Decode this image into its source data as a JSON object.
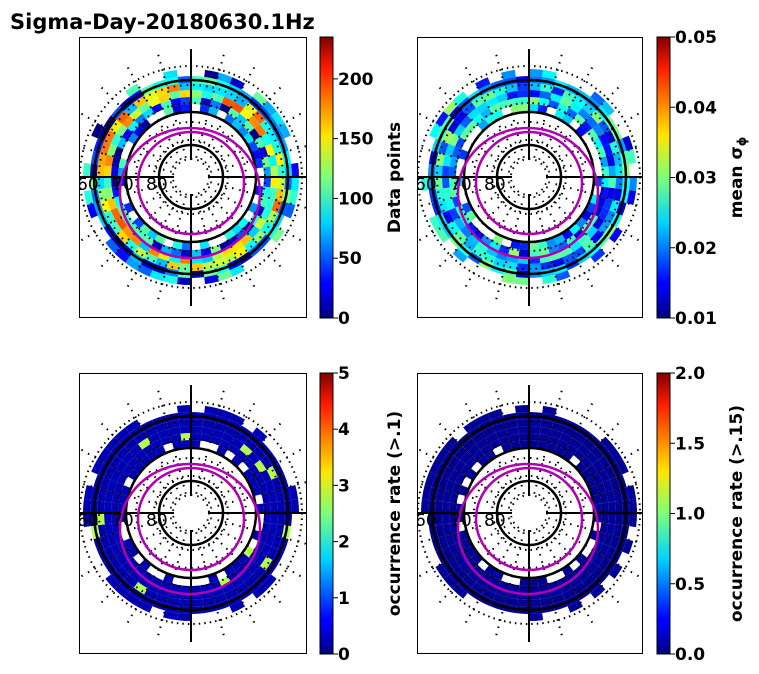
{
  "chart_data": {
    "type": "heatmap",
    "title": "Sigma-Day-20180630.1Hz",
    "latitude_labels": [
      "60",
      "70",
      "80"
    ],
    "panels": [
      {
        "name": "data-points",
        "cbar_label": "Data points",
        "cbar_ticks": [
          "0",
          "50",
          "100",
          "150",
          "200"
        ],
        "cbar_tick_values": [
          0,
          50,
          100,
          150,
          200
        ],
        "vmin": 0,
        "vmax": 235,
        "level": 0.5
      },
      {
        "name": "mean-sigma",
        "cbar_label": "mean σ",
        "cbar_label_sub": "ϕ",
        "cbar_ticks": [
          "0.01",
          "0.02",
          "0.03",
          "0.04",
          "0.05"
        ],
        "cbar_tick_values": [
          0.01,
          0.02,
          0.03,
          0.04,
          0.05
        ],
        "vmin": 0.01,
        "vmax": 0.05,
        "level": 0.4
      },
      {
        "name": "occurrence-rate-01",
        "cbar_label": "occurrence rate (>.1)",
        "cbar_ticks": [
          "0",
          "1",
          "2",
          "3",
          "4",
          "5"
        ],
        "cbar_tick_values": [
          0,
          1,
          2,
          3,
          4,
          5
        ],
        "vmin": 0,
        "vmax": 5,
        "level": 0.02
      },
      {
        "name": "occurrence-rate-015",
        "cbar_label": "occurrence rate (>.15)",
        "cbar_ticks": [
          "0.0",
          "0.5",
          "1.0",
          "1.5",
          "2.0"
        ],
        "cbar_tick_values": [
          0,
          0.5,
          1,
          1.5,
          2
        ],
        "vmin": 0,
        "vmax": 2,
        "level": 0.0
      }
    ]
  },
  "colors": {
    "circle": "#000000",
    "oval": "#b400b4"
  }
}
